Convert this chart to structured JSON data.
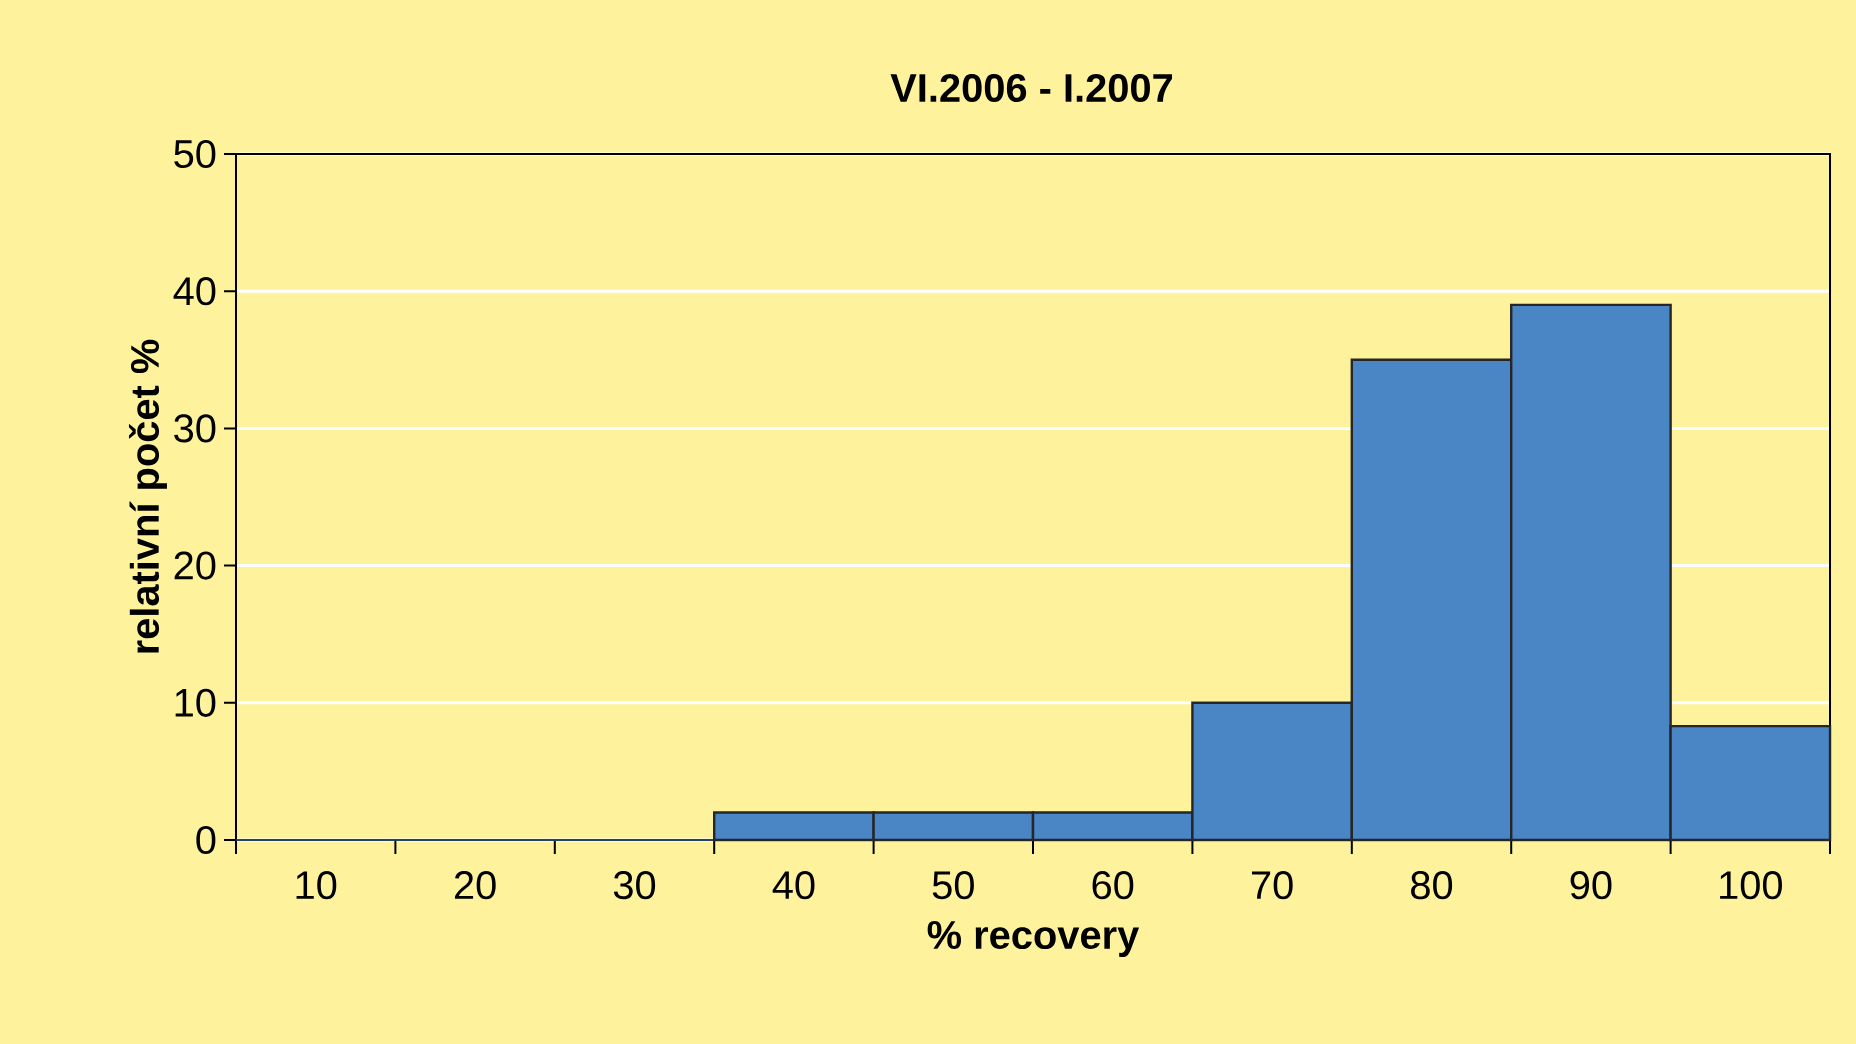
{
  "chart_data": {
    "type": "bar",
    "title": "VI.2006 - I.2007",
    "xlabel": "% recovery",
    "ylabel": "relativní počet %",
    "categories": [
      "10",
      "20",
      "30",
      "40",
      "50",
      "60",
      "70",
      "80",
      "90",
      "100"
    ],
    "values": [
      0,
      0,
      0,
      2,
      2,
      2,
      10,
      35,
      39,
      8.3
    ],
    "color": "#4a86c6",
    "ylim": [
      0,
      50
    ],
    "yticks": [
      0,
      10,
      20,
      30,
      40,
      50
    ],
    "grid": "y"
  }
}
